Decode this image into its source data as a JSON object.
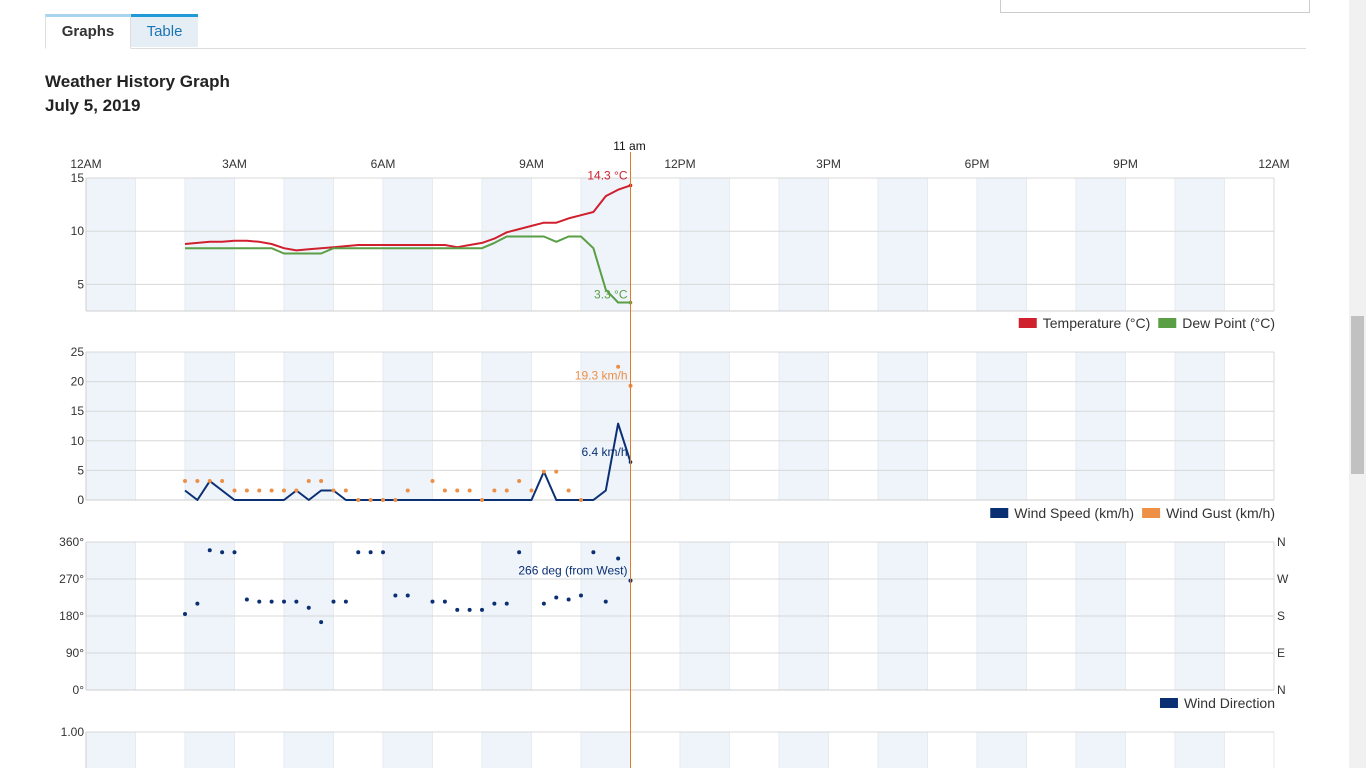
{
  "tabs": [
    {
      "label": "Graphs",
      "active": true
    },
    {
      "label": "Table",
      "active": false
    }
  ],
  "title": "Weather History Graph",
  "date": "July 5, 2019",
  "cursor": {
    "label": "11 am",
    "x": 11.0
  },
  "colors": {
    "temperature": "#d0202e",
    "dew_point": "#5a9e46",
    "wind_speed": "#0a2f73",
    "wind_gust": "#ed8f45",
    "wind_direction": "#0a2f73",
    "cursor": "#e07b24",
    "band": "#eef4fa"
  },
  "chart_data": [
    {
      "type": "line",
      "x_ticks": [
        "12AM",
        "3AM",
        "6AM",
        "9AM",
        "12PM",
        "3PM",
        "6PM",
        "9PM",
        "12AM"
      ],
      "xlim": [
        0,
        24
      ],
      "ylim": [
        2.5,
        15
      ],
      "y_ticks": [
        5,
        10,
        15
      ],
      "grid": true,
      "legend": "bottom-right",
      "series": [
        {
          "name": "Temperature (°C)",
          "color": "#d0202e",
          "x": [
            2,
            2.25,
            2.5,
            2.75,
            3,
            3.25,
            3.5,
            3.75,
            4,
            4.25,
            4.5,
            4.75,
            5,
            5.25,
            5.5,
            5.75,
            6,
            6.25,
            6.5,
            6.75,
            7,
            7.25,
            7.5,
            7.75,
            8,
            8.25,
            8.5,
            8.75,
            9,
            9.25,
            9.5,
            9.75,
            10,
            10.25,
            10.5,
            10.75,
            11
          ],
          "y": [
            8.8,
            8.9,
            9,
            9,
            9.1,
            9.1,
            9,
            8.8,
            8.4,
            8.2,
            8.3,
            8.4,
            8.5,
            8.6,
            8.7,
            8.7,
            8.7,
            8.7,
            8.7,
            8.7,
            8.7,
            8.7,
            8.5,
            8.7,
            8.9,
            9.3,
            9.9,
            10.2,
            10.5,
            10.8,
            10.8,
            11.2,
            11.5,
            11.8,
            13.3,
            13.9,
            14.3
          ]
        },
        {
          "name": "Dew Point (°C)",
          "color": "#5a9e46",
          "x": [
            2,
            2.5,
            3,
            3.5,
            3.75,
            4,
            4.5,
            4.75,
            5,
            5.5,
            6,
            6.5,
            7,
            7.5,
            8,
            8.25,
            8.5,
            9,
            9.25,
            9.5,
            9.75,
            10,
            10.25,
            10.5,
            10.75,
            11
          ],
          "y": [
            8.4,
            8.4,
            8.4,
            8.4,
            8.4,
            7.9,
            7.9,
            7.9,
            8.4,
            8.4,
            8.4,
            8.4,
            8.4,
            8.4,
            8.4,
            8.9,
            9.5,
            9.5,
            9.5,
            9,
            9.5,
            9.5,
            8.4,
            4.5,
            3.3,
            3.3
          ]
        }
      ],
      "annotations": [
        {
          "text": "14.3 °C",
          "series": "Temperature (°C)",
          "x": 11,
          "y": 14.3
        },
        {
          "text": "3.3 °C",
          "series": "Dew Point (°C)",
          "x": 11,
          "y": 3.3
        }
      ]
    },
    {
      "type": "line",
      "xlim": [
        0,
        24
      ],
      "ylim": [
        0,
        25
      ],
      "y_ticks": [
        0,
        5,
        10,
        15,
        20,
        25
      ],
      "grid": true,
      "legend": "bottom-right",
      "series": [
        {
          "name": "Wind Speed (km/h)",
          "color": "#0a2f73",
          "style": "line",
          "x": [
            2,
            2.25,
            2.5,
            2.75,
            3,
            3.25,
            3.5,
            3.75,
            4,
            4.25,
            4.5,
            4.75,
            5,
            5.25,
            5.5,
            5.75,
            6,
            6.25,
            6.5,
            6.75,
            7,
            7.25,
            7.5,
            7.75,
            8,
            8.25,
            8.5,
            8.75,
            9,
            9.25,
            9.5,
            9.75,
            10,
            10.25,
            10.5,
            10.75,
            11
          ],
          "y": [
            1.6,
            0,
            3.2,
            1.6,
            0,
            0,
            0,
            0,
            0,
            1.6,
            0,
            1.6,
            1.6,
            0,
            0,
            0,
            0,
            0,
            0,
            0,
            0,
            0,
            0,
            0,
            0,
            0,
            0,
            0,
            0,
            4.8,
            0,
            0,
            0,
            0,
            1.6,
            12.9,
            6.4
          ]
        },
        {
          "name": "Wind Gust (km/h)",
          "color": "#ed8f45",
          "style": "dots",
          "x": [
            2,
            2.25,
            2.5,
            2.75,
            3,
            3.25,
            3.5,
            3.75,
            4,
            4.25,
            4.5,
            4.75,
            5,
            5.25,
            5.5,
            5.75,
            6,
            6.25,
            6.5,
            7,
            7.25,
            7.5,
            7.75,
            8,
            8.25,
            8.5,
            8.75,
            9,
            9.25,
            9.5,
            9.75,
            10,
            10.75,
            11
          ],
          "y": [
            3.2,
            3.2,
            3.2,
            3.2,
            1.6,
            1.6,
            1.6,
            1.6,
            1.6,
            1.6,
            3.2,
            3.2,
            1.6,
            1.6,
            0,
            0,
            0,
            0,
            1.6,
            3.2,
            1.6,
            1.6,
            1.6,
            0,
            1.6,
            1.6,
            3.2,
            1.6,
            4.8,
            4.8,
            1.6,
            0,
            22.5,
            19.3
          ]
        }
      ],
      "annotations": [
        {
          "text": "19.3 km/h",
          "series": "Wind Gust (km/h)",
          "x": 11,
          "y": 19.3
        },
        {
          "text": "6.4 km/h",
          "series": "Wind Speed (km/h)",
          "x": 11,
          "y": 6.4
        }
      ]
    },
    {
      "type": "scatter",
      "xlim": [
        0,
        24
      ],
      "ylim": [
        0,
        360
      ],
      "y_ticks": [
        0,
        90,
        180,
        270,
        360
      ],
      "y_tick_labels": [
        "0°",
        "90°",
        "180°",
        "270°",
        "360°"
      ],
      "right_tick_labels": [
        "N",
        "E",
        "S",
        "W",
        "N"
      ],
      "grid": true,
      "legend": "bottom-right",
      "series": [
        {
          "name": "Wind Direction",
          "color": "#0a2f73",
          "x": [
            2,
            2.25,
            2.5,
            2.75,
            3,
            3.25,
            3.5,
            3.75,
            4,
            4.25,
            4.5,
            4.75,
            5,
            5.25,
            5.5,
            5.75,
            6,
            6.25,
            6.5,
            7,
            7.25,
            7.5,
            7.75,
            8,
            8.25,
            8.5,
            8.75,
            9.25,
            9.5,
            9.75,
            10,
            10.25,
            10.5,
            10.75,
            11
          ],
          "y": [
            185,
            210,
            340,
            335,
            335,
            220,
            215,
            215,
            215,
            215,
            200,
            165,
            215,
            215,
            335,
            335,
            335,
            230,
            230,
            215,
            215,
            195,
            195,
            195,
            210,
            210,
            335,
            210,
            225,
            220,
            230,
            335,
            215,
            320,
            266
          ]
        }
      ],
      "annotations": [
        {
          "text": "266 deg (from West)",
          "series": "Wind Direction",
          "x": 11,
          "y": 266
        }
      ]
    },
    {
      "type": "line",
      "xlim": [
        0,
        24
      ],
      "y_ticks": [
        1.0
      ],
      "y_tick_labels": [
        "1.00"
      ],
      "series": []
    }
  ]
}
